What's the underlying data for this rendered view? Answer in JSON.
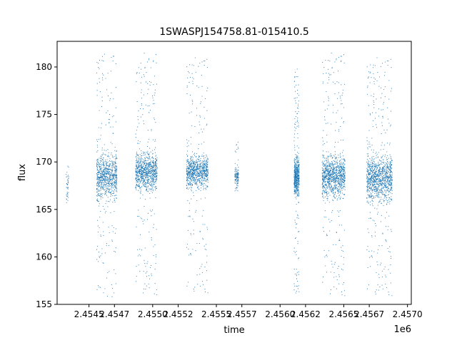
{
  "chart_data": {
    "type": "scatter",
    "title": "1SWASPJ154758.81-015410.5",
    "xlabel": "time",
    "ylabel": "flux",
    "x_offset_label": "1e6",
    "xlim": [
      2.45425,
      2.45703
    ],
    "ylim": [
      155.0,
      182.7
    ],
    "x_ticks": [
      2.4545,
      2.4547,
      2.455,
      2.4552,
      2.4555,
      2.4557,
      2.456,
      2.4562,
      2.4565,
      2.4567,
      2.457
    ],
    "x_tick_labels": [
      "2.4545",
      "2.4547",
      "2.4550",
      "2.4552",
      "2.4555",
      "2.4557",
      "2.4560",
      "2.4562",
      "2.4565",
      "2.4567",
      "2.4570"
    ],
    "y_ticks": [
      155,
      160,
      165,
      170,
      175,
      180
    ],
    "y_tick_labels": [
      "155",
      "160",
      "165",
      "170",
      "175",
      "180"
    ],
    "grid": false,
    "marker_color": "#1f77b4",
    "clusters": [
      {
        "x": 2.45433,
        "width": 2e-05,
        "y_center": 167.3,
        "y_spread": 1.8,
        "y_min": 165.0,
        "y_max": 169.7,
        "count": 40
      },
      {
        "x": 2.45464,
        "width": 0.00016,
        "y_center": 168.5,
        "y_spread": 3.0,
        "y_min": 155.8,
        "y_max": 181.5,
        "count": 900
      },
      {
        "x": 2.45495,
        "width": 0.00017,
        "y_center": 169.0,
        "y_spread": 2.4,
        "y_min": 156.0,
        "y_max": 181.5,
        "count": 1000
      },
      {
        "x": 2.45535,
        "width": 0.00017,
        "y_center": 169.0,
        "y_spread": 2.1,
        "y_min": 156.2,
        "y_max": 181.0,
        "count": 900
      },
      {
        "x": 2.45566,
        "width": 3e-05,
        "y_center": 168.4,
        "y_spread": 1.0,
        "y_min": 166.5,
        "y_max": 172.3,
        "count": 120
      },
      {
        "x": 2.45613,
        "width": 4e-05,
        "y_center": 168.5,
        "y_spread": 2.5,
        "y_min": 155.8,
        "y_max": 180.5,
        "count": 600
      },
      {
        "x": 2.45642,
        "width": 0.00018,
        "y_center": 168.5,
        "y_spread": 2.6,
        "y_min": 155.9,
        "y_max": 181.5,
        "count": 1100
      },
      {
        "x": 2.45678,
        "width": 0.0002,
        "y_center": 168.3,
        "y_spread": 3.0,
        "y_min": 155.9,
        "y_max": 181.0,
        "count": 1200
      }
    ]
  }
}
